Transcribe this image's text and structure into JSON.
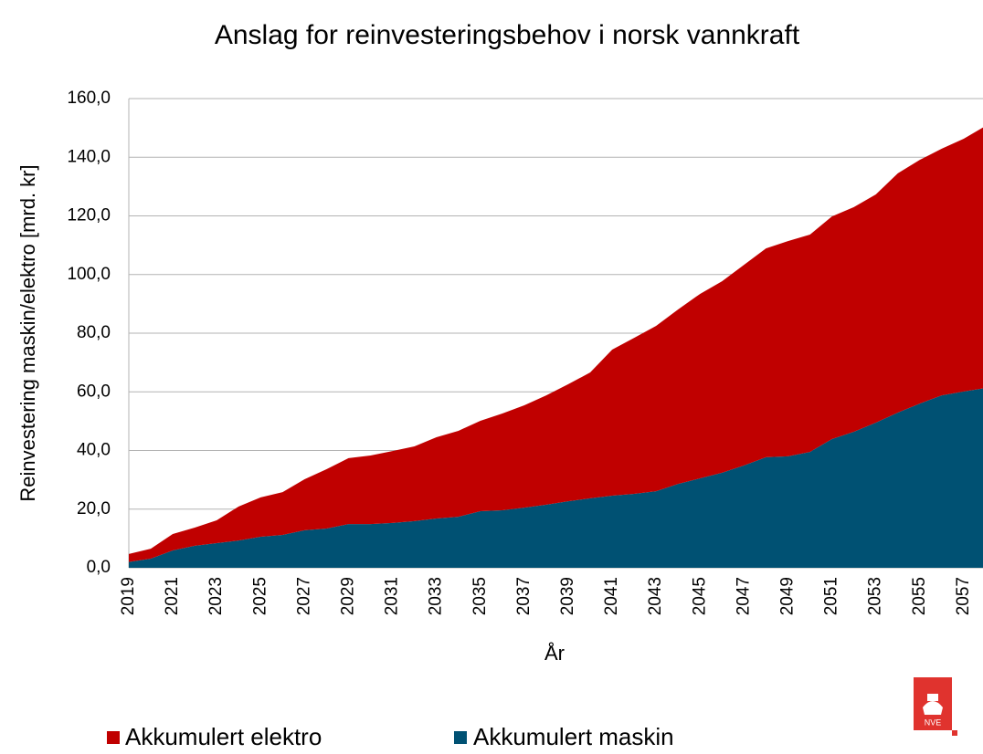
{
  "chart_data": {
    "type": "stacked_area",
    "title": "Anslag for reinvesteringsbehov i norsk vannkraft",
    "x_label": "År",
    "y_label": "Reinvestering maskin/elektro [mrd. kr]",
    "categories": [
      "2019",
      null,
      "2021",
      null,
      "2023",
      null,
      "2025",
      null,
      "2027",
      null,
      "2029",
      null,
      "2031",
      null,
      "2033",
      null,
      "2035",
      null,
      "2037",
      null,
      "2039",
      null,
      "2041",
      null,
      "2043",
      null,
      "2045",
      null,
      "2047",
      null,
      "2049",
      null,
      "2051",
      null,
      "2053",
      null,
      "2055",
      null,
      "2057",
      null
    ],
    "series": [
      {
        "name": "Akkumulert maskin",
        "color": "#005173",
        "values": [
          2.0,
          3.1,
          5.9,
          7.5,
          8.4,
          9.3,
          10.6,
          11.2,
          12.8,
          13.4,
          14.9,
          14.9,
          15.3,
          15.9,
          16.8,
          17.4,
          19.3,
          19.6,
          20.5,
          21.5,
          22.7,
          23.7,
          24.6,
          25.2,
          26.1,
          28.6,
          30.5,
          32.4,
          34.9,
          37.7,
          38.0,
          39.5,
          43.9,
          46.4,
          49.5,
          52.9,
          56.0,
          58.8,
          60.1,
          61.3
        ]
      },
      {
        "name": "Akkumulert elektro",
        "color": "#c00000",
        "values": [
          2.7,
          3.4,
          5.6,
          6.2,
          7.8,
          11.6,
          13.4,
          14.6,
          17.4,
          20.2,
          22.5,
          23.4,
          24.5,
          25.5,
          27.7,
          29.3,
          30.8,
          33.0,
          34.9,
          37.3,
          39.9,
          42.9,
          49.8,
          53.2,
          56.4,
          59.5,
          62.9,
          65.3,
          68.4,
          71.2,
          73.4,
          74.1,
          75.9,
          76.6,
          77.8,
          81.6,
          83.1,
          84.1,
          86.2,
          89.4
        ]
      }
    ],
    "ylim": [
      0,
      160
    ],
    "yticks": [
      {
        "value": 0,
        "label": "0,0"
      },
      {
        "value": 20,
        "label": "20,0"
      },
      {
        "value": 40,
        "label": "40,0"
      },
      {
        "value": 60,
        "label": "60,0"
      },
      {
        "value": 80,
        "label": "80,0"
      },
      {
        "value": 100,
        "label": "100,0"
      },
      {
        "value": 120,
        "label": "120,0"
      },
      {
        "value": 140,
        "label": "140,0"
      },
      {
        "value": 160,
        "label": "160,0"
      }
    ],
    "grid": true,
    "legend": "bottom"
  },
  "logo": "NVE"
}
